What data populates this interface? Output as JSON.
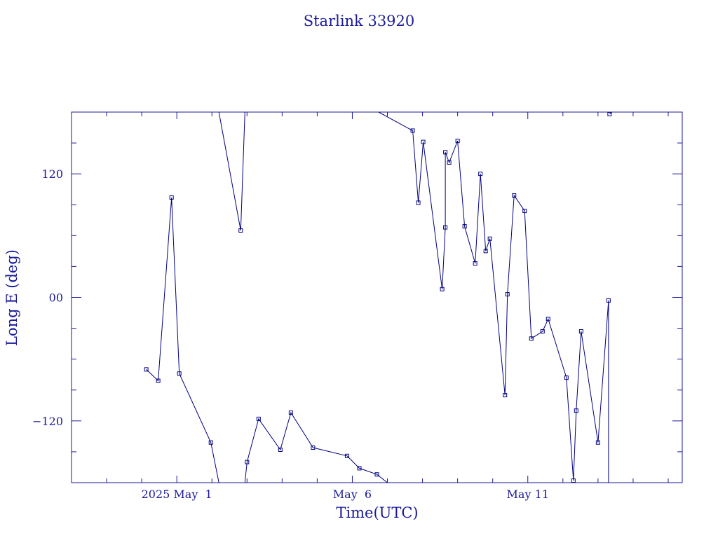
{
  "chart_data": {
    "type": "line",
    "title": "Starlink 33920",
    "xlabel": "Time(UTC)",
    "ylabel": "Long E (deg)",
    "colors": {
      "line": "#000080",
      "text": "#1a1a99",
      "frame": "#1a1a99"
    },
    "x_unit": "day",
    "xlim": [
      -3.0,
      14.4
    ],
    "ylim": [
      -180,
      180
    ],
    "x_tick_labels": [
      {
        "x": 0,
        "label": "2025 May  1"
      },
      {
        "x": 5,
        "label": "May  6"
      },
      {
        "x": 10,
        "label": "May 11"
      }
    ],
    "y_tick_labels": [
      {
        "y": 120,
        "label": "120"
      },
      {
        "y": 0,
        "label": "00"
      },
      {
        "y": -120,
        "label": "−120"
      }
    ],
    "y_major_ticks": [
      -120,
      0,
      120
    ],
    "y_minor_ticks": [
      -150,
      -90,
      -60,
      -30,
      30,
      60,
      90,
      150
    ],
    "x_minor_ticks": [
      -2,
      -1,
      0,
      1,
      2,
      3,
      4,
      5,
      6,
      7,
      8,
      9,
      10,
      11,
      12,
      13,
      14
    ],
    "grid": false,
    "legend": "none",
    "segments": [
      [
        [
          -0.87,
          -70
        ],
        [
          -0.53,
          -81
        ],
        [
          -0.15,
          97
        ],
        [
          0.07,
          -74
        ],
        [
          0.97,
          -141
        ],
        [
          1.2,
          -180
        ]
      ],
      [
        [
          1.2,
          180
        ],
        [
          1.82,
          65
        ],
        [
          1.94,
          180
        ]
      ],
      [
        [
          1.94,
          -180
        ],
        [
          2.0,
          -160
        ],
        [
          2.33,
          -118
        ],
        [
          2.95,
          -148
        ],
        [
          3.25,
          -112
        ],
        [
          3.88,
          -146
        ],
        [
          4.85,
          -154
        ],
        [
          5.2,
          -166
        ],
        [
          5.7,
          -172
        ],
        [
          6.0,
          -180
        ]
      ],
      [
        [
          5.75,
          180
        ],
        [
          6.72,
          162
        ],
        [
          6.88,
          92
        ],
        [
          7.02,
          151
        ],
        [
          7.56,
          8
        ],
        [
          7.65,
          68
        ],
        [
          7.65,
          141
        ],
        [
          7.76,
          131
        ],
        [
          8.0,
          152
        ],
        [
          8.2,
          69
        ],
        [
          8.5,
          33
        ],
        [
          8.65,
          120
        ],
        [
          8.8,
          45
        ],
        [
          8.92,
          57
        ],
        [
          9.35,
          -95
        ],
        [
          9.42,
          3
        ],
        [
          9.61,
          99
        ],
        [
          9.91,
          84
        ],
        [
          10.1,
          -40
        ],
        [
          10.42,
          -33
        ],
        [
          10.58,
          -21
        ],
        [
          11.1,
          -78
        ],
        [
          11.3,
          -178
        ],
        [
          11.38,
          -110
        ],
        [
          11.52,
          -33
        ],
        [
          12.0,
          -141
        ],
        [
          12.3,
          -3
        ],
        [
          12.3,
          -180
        ]
      ],
      [
        [
          12.33,
          178
        ],
        [
          12.4,
          180
        ]
      ]
    ],
    "point_markers": [
      [
        -0.87,
        -70
      ],
      [
        -0.53,
        -81
      ],
      [
        -0.15,
        97
      ],
      [
        0.07,
        -74
      ],
      [
        0.97,
        -141
      ],
      [
        1.82,
        65
      ],
      [
        2.0,
        -160
      ],
      [
        2.33,
        -118
      ],
      [
        2.95,
        -148
      ],
      [
        3.25,
        -112
      ],
      [
        3.88,
        -146
      ],
      [
        4.85,
        -154
      ],
      [
        5.2,
        -166
      ],
      [
        5.7,
        -172
      ],
      [
        6.72,
        162
      ],
      [
        6.88,
        92
      ],
      [
        7.02,
        151
      ],
      [
        7.56,
        8
      ],
      [
        7.65,
        68
      ],
      [
        7.65,
        141
      ],
      [
        7.76,
        131
      ],
      [
        8.0,
        152
      ],
      [
        8.2,
        69
      ],
      [
        8.5,
        33
      ],
      [
        8.65,
        120
      ],
      [
        8.8,
        45
      ],
      [
        8.92,
        57
      ],
      [
        9.35,
        -95
      ],
      [
        9.42,
        3
      ],
      [
        9.61,
        99
      ],
      [
        9.91,
        84
      ],
      [
        10.1,
        -40
      ],
      [
        10.42,
        -33
      ],
      [
        10.58,
        -21
      ],
      [
        11.1,
        -78
      ],
      [
        11.3,
        -178
      ],
      [
        11.38,
        -110
      ],
      [
        11.52,
        -33
      ],
      [
        12.0,
        -141
      ],
      [
        12.3,
        -3
      ],
      [
        12.33,
        178
      ]
    ]
  }
}
